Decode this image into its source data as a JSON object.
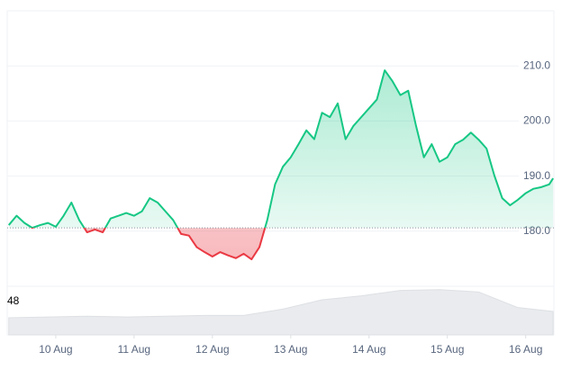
{
  "chart_data": {
    "type": "baseline",
    "color_up": "#16c784",
    "color_down": "#ea3943",
    "baseline": 180.6,
    "grid": true,
    "x": [
      9.4,
      9.5,
      9.6,
      9.7,
      9.8,
      9.9,
      10.0,
      10.1,
      10.2,
      10.3,
      10.4,
      10.5,
      10.6,
      10.7,
      10.8,
      10.9,
      11.0,
      11.1,
      11.2,
      11.3,
      11.4,
      11.5,
      11.6,
      11.7,
      11.8,
      11.9,
      12.0,
      12.1,
      12.2,
      12.3,
      12.4,
      12.5,
      12.6,
      12.7,
      12.8,
      12.9,
      13.0,
      13.1,
      13.2,
      13.3,
      13.4,
      13.5,
      13.6,
      13.7,
      13.8,
      13.9,
      14.0,
      14.1,
      14.2,
      14.3,
      14.4,
      14.5,
      14.6,
      14.7,
      14.8,
      14.9,
      15.0,
      15.1,
      15.2,
      15.3,
      15.4,
      15.5,
      15.6,
      15.7,
      15.8,
      15.9,
      16.0,
      16.1,
      16.2,
      16.3,
      16.35
    ],
    "values": [
      181.1,
      182.8,
      181.5,
      180.6,
      181.1,
      181.5,
      180.8,
      182.8,
      185.2,
      182.0,
      179.8,
      180.3,
      179.8,
      182.3,
      182.8,
      183.3,
      182.8,
      183.6,
      186.0,
      185.2,
      183.6,
      182.0,
      179.5,
      179.2,
      177.1,
      176.2,
      175.4,
      176.2,
      175.6,
      175.1,
      175.9,
      174.9,
      177.1,
      182.0,
      188.5,
      191.7,
      193.4,
      195.8,
      198.3,
      196.7,
      201.5,
      200.7,
      203.2,
      196.7,
      199.1,
      200.7,
      202.3,
      203.9,
      209.2,
      207.2,
      204.7,
      205.5,
      199.1,
      193.4,
      195.8,
      192.6,
      193.4,
      195.8,
      196.6,
      197.9,
      196.6,
      195.0,
      190.1,
      186.0,
      184.7,
      185.7,
      186.9,
      187.7,
      188.0,
      188.5,
      189.6
    ],
    "xlim": [
      9.38,
      16.36
    ],
    "xticks": [
      {
        "value": 10,
        "label": "10 Aug"
      },
      {
        "value": 11,
        "label": "11 Aug"
      },
      {
        "value": 12,
        "label": "12 Aug"
      },
      {
        "value": 13,
        "label": "13 Aug"
      },
      {
        "value": 14,
        "label": "14 Aug"
      },
      {
        "value": 15,
        "label": "15 Aug"
      },
      {
        "value": 16,
        "label": "16 Aug"
      }
    ],
    "ylim": [
      170,
      220
    ],
    "yticks": [
      {
        "value": 180,
        "label": "180.0"
      },
      {
        "value": 190,
        "label": "190.0"
      },
      {
        "value": 200,
        "label": "200.0"
      },
      {
        "value": 210,
        "label": "210.0"
      }
    ],
    "volume": {
      "label": "48",
      "color": "#e9ebee",
      "ylim": [
        0,
        60
      ],
      "x": [
        9.4,
        9.9,
        10.4,
        10.9,
        11.4,
        11.9,
        12.4,
        12.9,
        13.4,
        13.9,
        14.4,
        14.9,
        15.4,
        15.9,
        16.35
      ],
      "values": [
        22,
        23,
        24,
        23,
        24,
        25,
        25,
        33,
        45,
        50,
        57,
        58,
        55,
        35,
        30
      ]
    }
  }
}
